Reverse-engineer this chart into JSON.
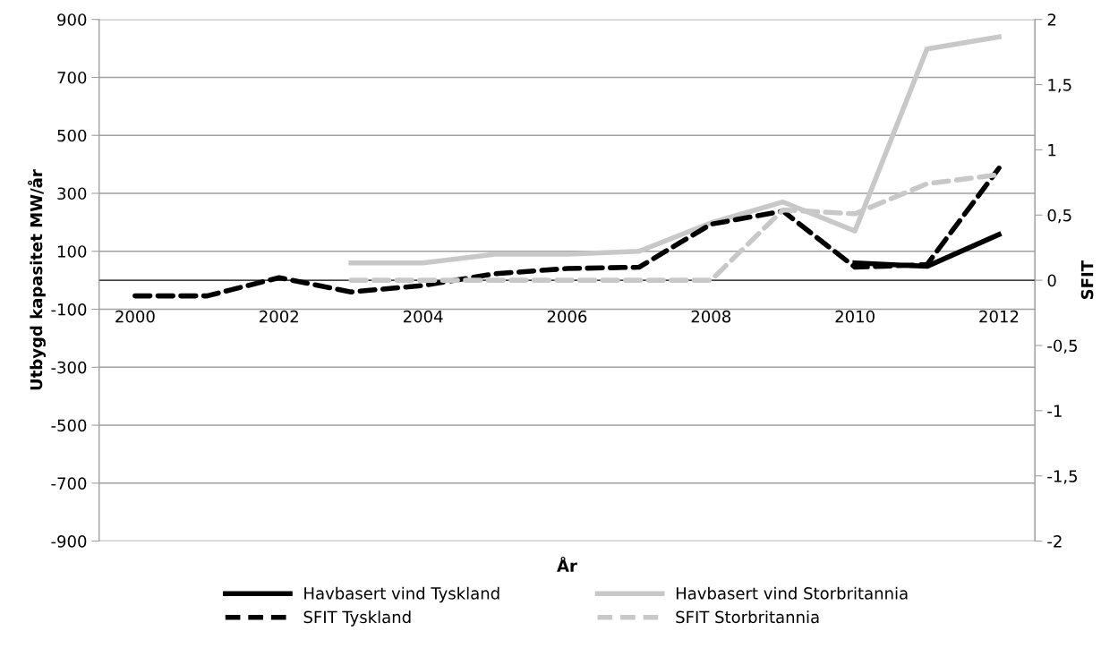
{
  "chart_data": {
    "type": "line",
    "xlabel": "År",
    "ylabel": "Utbygd kapasitet MW/år",
    "y2label": "SFIT",
    "categories": [
      "2000",
      null,
      "2002",
      null,
      "2004",
      null,
      "2006",
      null,
      "2008",
      null,
      "2010",
      null,
      "2012"
    ],
    "ylim": [
      -900,
      900
    ],
    "yticks": [
      -900,
      -700,
      -500,
      -300,
      -100,
      100,
      300,
      500,
      700,
      900
    ],
    "y2lim": [
      -2,
      2
    ],
    "y2ticks": [
      {
        "value": -2,
        "label": "-2"
      },
      {
        "value": -1.5,
        "label": "-1,5"
      },
      {
        "value": -1,
        "label": "-1"
      },
      {
        "value": -0.5,
        "label": "-0,5"
      },
      {
        "value": 0,
        "label": "0"
      },
      {
        "value": 0.5,
        "label": "0,5"
      },
      {
        "value": 1,
        "label": "1"
      },
      {
        "value": 1.5,
        "label": "1,5"
      },
      {
        "value": 2,
        "label": "2"
      }
    ],
    "grid": "y",
    "legend": "bottom",
    "marker": "none",
    "series": [
      {
        "name": "Havbasert vind Tyskland",
        "color": "#000000",
        "line_style": "solid",
        "values": [
          null,
          null,
          null,
          null,
          null,
          null,
          null,
          null,
          null,
          null,
          60,
          48,
          158
        ]
      },
      {
        "name": "Havbasert vind Storbritannia",
        "color": "#c8c8c8",
        "line_style": "solid",
        "values": [
          null,
          null,
          null,
          60,
          60,
          90,
          90,
          100,
          198,
          270,
          170,
          798,
          840
        ]
      },
      {
        "name": "SFIT Tyskland",
        "color": "#000000",
        "line_style": "dashed",
        "axis": "y2",
        "values": [
          -0.12,
          -0.12,
          0.02,
          -0.09,
          -0.04,
          0.05,
          0.09,
          0.1,
          0.43,
          0.53,
          0.1,
          0.12,
          0.86
        ]
      },
      {
        "name": "SFIT Storbritannia",
        "color": "#c8c8c8",
        "line_style": "dashed",
        "axis": "y2",
        "values": [
          null,
          null,
          null,
          0,
          0,
          0,
          0,
          0,
          0,
          0.54,
          0.51,
          0.74,
          0.81
        ]
      }
    ]
  }
}
